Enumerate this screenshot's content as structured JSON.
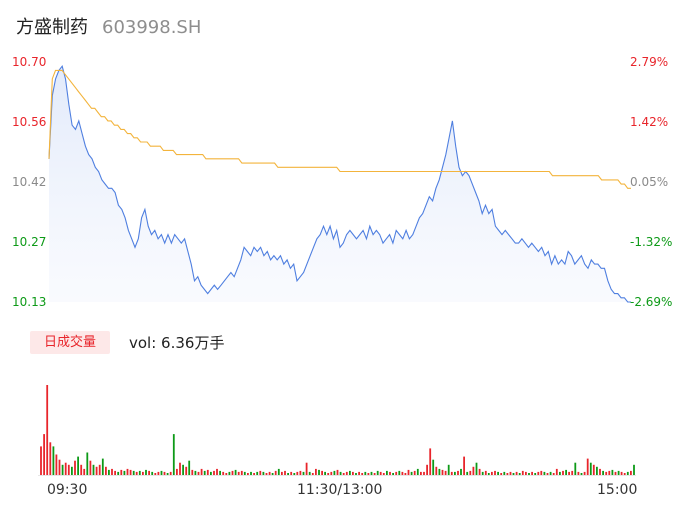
{
  "header": {
    "name": "方盛制药",
    "code": "603998.SH"
  },
  "price_axis": {
    "left_labels": [
      "10.70",
      "10.56",
      "10.42",
      "10.27",
      "10.13"
    ],
    "right_labels": [
      "2.79%",
      "1.42%",
      "0.05%",
      "-1.32%",
      "-2.69%"
    ]
  },
  "volume": {
    "tag": "日成交量",
    "label": "vol: 6.36万手"
  },
  "time_labels": [
    "09:30",
    "11:30/13:00",
    "15:00"
  ],
  "colors": {
    "price_line": "#4f7fe0",
    "avg_line": "#f3b43c",
    "up": "#e8252b",
    "down": "#0d9a17",
    "flat": "#8a8a8a"
  },
  "chart_data": [
    {
      "type": "line",
      "title": "",
      "ylim": [
        10.13,
        10.7
      ],
      "x_ticks": [
        "09:30",
        "11:30/13:00",
        "15:00"
      ],
      "series": [
        {
          "values": [
            10.47,
            10.62,
            10.66,
            10.68,
            10.69,
            10.66,
            10.6,
            10.55,
            10.54,
            10.56,
            10.53,
            10.5,
            10.48,
            10.47,
            10.45,
            10.44,
            10.42,
            10.41,
            10.4,
            10.4,
            10.39,
            10.36,
            10.35,
            10.33,
            10.3,
            10.28,
            10.26,
            10.28,
            10.33,
            10.35,
            10.31,
            10.29,
            10.3,
            10.28,
            10.29,
            10.27,
            10.29,
            10.27,
            10.29,
            10.28,
            10.27,
            10.28,
            10.25,
            10.22,
            10.18,
            10.19,
            10.17,
            10.16,
            10.15,
            10.16,
            10.17,
            10.16,
            10.17,
            10.18,
            10.19,
            10.2,
            10.19,
            10.21,
            10.23,
            10.26,
            10.25,
            10.24,
            10.26,
            10.25,
            10.26,
            10.24,
            10.25,
            10.23,
            10.24,
            10.23,
            10.24,
            10.22,
            10.23,
            10.21,
            10.22,
            10.18,
            10.19,
            10.2,
            10.22,
            10.24,
            10.26,
            10.28,
            10.29,
            10.31,
            10.29,
            10.31,
            10.28,
            10.3,
            10.26,
            10.27,
            10.29,
            10.3,
            10.29,
            10.28,
            10.29,
            10.3,
            10.28,
            10.31,
            10.29,
            10.3,
            10.29,
            10.27,
            10.28,
            10.29,
            10.27,
            10.3,
            10.29,
            10.28,
            10.3,
            10.28,
            10.29,
            10.31,
            10.33,
            10.34,
            10.36,
            10.38,
            10.37,
            10.4,
            10.42,
            10.45,
            10.48,
            10.52,
            10.56,
            10.5,
            10.45,
            10.43,
            10.44,
            10.43,
            10.41,
            10.39,
            10.37,
            10.34,
            10.36,
            10.34,
            10.35,
            10.31,
            10.3,
            10.29,
            10.3,
            10.29,
            10.28,
            10.27,
            10.27,
            10.28,
            10.27,
            10.26,
            10.27,
            10.26,
            10.25,
            10.26,
            10.24,
            10.25,
            10.22,
            10.24,
            10.22,
            10.23,
            10.22,
            10.25,
            10.24,
            10.22,
            10.23,
            10.24,
            10.22,
            10.21,
            10.23,
            10.22,
            10.22,
            10.21,
            10.21,
            10.18,
            10.16,
            10.15,
            10.15,
            10.14,
            10.14,
            10.13,
            10.13
          ]
        },
        {
          "values": [
            10.47,
            10.66,
            10.68,
            10.68,
            10.68,
            10.67,
            10.66,
            10.65,
            10.64,
            10.63,
            10.62,
            10.61,
            10.6,
            10.59,
            10.59,
            10.58,
            10.57,
            10.57,
            10.56,
            10.56,
            10.55,
            10.55,
            10.54,
            10.54,
            10.53,
            10.53,
            10.52,
            10.52,
            10.51,
            10.51,
            10.51,
            10.5,
            10.5,
            10.5,
            10.5,
            10.49,
            10.49,
            10.49,
            10.49,
            10.48,
            10.48,
            10.48,
            10.48,
            10.48,
            10.48,
            10.48,
            10.48,
            10.48,
            10.47,
            10.47,
            10.47,
            10.47,
            10.47,
            10.47,
            10.47,
            10.47,
            10.47,
            10.47,
            10.47,
            10.46,
            10.46,
            10.46,
            10.46,
            10.46,
            10.46,
            10.46,
            10.46,
            10.46,
            10.46,
            10.46,
            10.45,
            10.45,
            10.45,
            10.45,
            10.45,
            10.45,
            10.45,
            10.45,
            10.45,
            10.45,
            10.45,
            10.45,
            10.45,
            10.45,
            10.45,
            10.45,
            10.45,
            10.45,
            10.45,
            10.44,
            10.44,
            10.44,
            10.44,
            10.44,
            10.44,
            10.44,
            10.44,
            10.44,
            10.44,
            10.44,
            10.44,
            10.44,
            10.44,
            10.44,
            10.44,
            10.44,
            10.44,
            10.44,
            10.44,
            10.44,
            10.44,
            10.44,
            10.44,
            10.44,
            10.44,
            10.44,
            10.44,
            10.44,
            10.44,
            10.44,
            10.44,
            10.44,
            10.44,
            10.44,
            10.44,
            10.44,
            10.44,
            10.44,
            10.44,
            10.44,
            10.44,
            10.44,
            10.44,
            10.44,
            10.44,
            10.44,
            10.44,
            10.44,
            10.44,
            10.44,
            10.44,
            10.44,
            10.44,
            10.44,
            10.44,
            10.44,
            10.44,
            10.44,
            10.44,
            10.44,
            10.44,
            10.44,
            10.44,
            10.44,
            10.43,
            10.43,
            10.43,
            10.43,
            10.43,
            10.43,
            10.43,
            10.43,
            10.43,
            10.43,
            10.43,
            10.43,
            10.43,
            10.43,
            10.43,
            10.42,
            10.42,
            10.42,
            10.42,
            10.42,
            10.42,
            10.41,
            10.41,
            10.4,
            10.4
          ]
        }
      ]
    },
    {
      "type": "bar",
      "title": "",
      "values": [
        28,
        40,
        88,
        32,
        28,
        20,
        15,
        10,
        12,
        10,
        8,
        14,
        18,
        10,
        6,
        22,
        14,
        10,
        8,
        10,
        16,
        8,
        5,
        6,
        4,
        3,
        5,
        4,
        6,
        5,
        4,
        3,
        4,
        3,
        5,
        4,
        3,
        2,
        3,
        4,
        3,
        2,
        3,
        40,
        6,
        12,
        10,
        8,
        14,
        5,
        4,
        3,
        6,
        4,
        5,
        3,
        4,
        6,
        4,
        3,
        2,
        3,
        4,
        5,
        3,
        4,
        3,
        2,
        3,
        2,
        3,
        4,
        3,
        2,
        3,
        2,
        4,
        6,
        3,
        4,
        2,
        3,
        2,
        3,
        4,
        3,
        12,
        3,
        2,
        6,
        5,
        4,
        3,
        2,
        3,
        4,
        5,
        3,
        2,
        3,
        4,
        3,
        2,
        3,
        2,
        3,
        2,
        3,
        2,
        4,
        3,
        2,
        4,
        3,
        2,
        3,
        4,
        3,
        2,
        5,
        3,
        4,
        6,
        3,
        3,
        10,
        26,
        15,
        8,
        6,
        5,
        4,
        10,
        3,
        3,
        4,
        6,
        18,
        3,
        4,
        8,
        12,
        6,
        3,
        4,
        2,
        3,
        4,
        3,
        2,
        3,
        2,
        3,
        2,
        3,
        2,
        4,
        3,
        2,
        3,
        2,
        3,
        4,
        3,
        2,
        3,
        2,
        6,
        3,
        4,
        5,
        3,
        4,
        12,
        3,
        2,
        3,
        16,
        12,
        10,
        8,
        6,
        4,
        3,
        4,
        5,
        3,
        4,
        3,
        2,
        3,
        4,
        10
      ],
      "direction": [
        "up",
        "up",
        "up",
        "up",
        "down",
        "up",
        "up",
        "down",
        "up",
        "up",
        "down",
        "up",
        "down",
        "up",
        "up",
        "down",
        "up",
        "down",
        "up",
        "up",
        "down",
        "up",
        "down",
        "up",
        "up",
        "down",
        "up",
        "down",
        "up",
        "up",
        "down",
        "up",
        "down",
        "up",
        "down",
        "up",
        "down",
        "up",
        "up",
        "down",
        "up",
        "down",
        "up",
        "down",
        "up",
        "up",
        "down",
        "up",
        "down",
        "up",
        "down",
        "up",
        "up",
        "down",
        "up",
        "down",
        "up",
        "up",
        "down",
        "up",
        "up",
        "down",
        "up",
        "down",
        "up",
        "up",
        "down",
        "up",
        "down",
        "up",
        "down",
        "up",
        "down",
        "up",
        "up",
        "down",
        "up",
        "down",
        "up",
        "up",
        "down",
        "up",
        "down",
        "up",
        "up",
        "down",
        "up",
        "down",
        "up",
        "up",
        "down",
        "up",
        "down",
        "up",
        "up",
        "down",
        "up",
        "down",
        "up",
        "up",
        "down",
        "up",
        "down",
        "up",
        "up",
        "down",
        "up",
        "down",
        "up",
        "down",
        "up",
        "up",
        "down",
        "up",
        "down",
        "up",
        "down",
        "up",
        "up",
        "up",
        "down",
        "up",
        "down",
        "up",
        "up",
        "up",
        "up",
        "down",
        "up",
        "down",
        "up",
        "up",
        "down",
        "up",
        "down",
        "up",
        "down",
        "up",
        "down",
        "up",
        "up",
        "down",
        "up",
        "down",
        "up",
        "down",
        "up",
        "up",
        "down",
        "up",
        "down",
        "up",
        "up",
        "down",
        "up",
        "down",
        "up",
        "up",
        "down",
        "up",
        "down",
        "up",
        "up",
        "down",
        "up",
        "down",
        "up",
        "up",
        "down",
        "up",
        "down",
        "up",
        "up",
        "down",
        "up",
        "down",
        "up",
        "up",
        "down",
        "up",
        "down",
        "up",
        "down",
        "up",
        "up",
        "down",
        "up",
        "down",
        "up",
        "up",
        "down",
        "up",
        "down",
        "up",
        "down",
        "up",
        "up",
        "flat"
      ]
    }
  ]
}
